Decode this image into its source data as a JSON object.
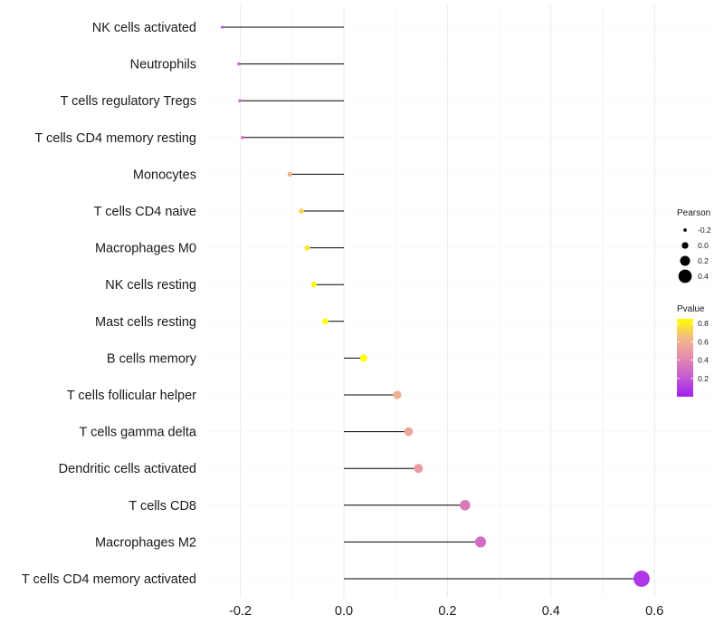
{
  "chart_data": {
    "type": "lollipop",
    "title": "",
    "xlabel": "",
    "ylabel": "",
    "xlim": [
      -0.25,
      0.65
    ],
    "xticks": [
      -0.2,
      0.0,
      0.2,
      0.4,
      0.6
    ],
    "xtick_labels": [
      "-0.2",
      "0.0",
      "0.2",
      "0.4",
      "0.6"
    ],
    "grid": true,
    "categories": [
      "NK cells activated",
      "Neutrophils",
      "T cells regulatory  Tregs",
      "T cells CD4 memory resting",
      "Monocytes",
      "T cells CD4 naive",
      "Macrophages M0",
      "NK cells resting",
      "Mast cells resting",
      "B cells memory",
      "T cells follicular helper",
      "T cells gamma delta",
      "Dendritic cells activated",
      "T cells CD8",
      "Macrophages M2",
      "T cells CD4 memory activated"
    ],
    "pearson": [
      -0.235,
      -0.203,
      -0.201,
      -0.196,
      -0.104,
      -0.082,
      -0.071,
      -0.058,
      -0.036,
      0.038,
      0.103,
      0.125,
      0.144,
      0.234,
      0.264,
      0.575
    ],
    "pvalue": [
      0.12,
      0.28,
      0.28,
      0.3,
      0.62,
      0.72,
      0.78,
      0.83,
      0.9,
      0.9,
      0.6,
      0.55,
      0.5,
      0.35,
      0.3,
      0.08
    ],
    "size_legend": {
      "title": "Pearson",
      "values": [
        -0.2,
        0.0,
        0.2,
        0.4
      ],
      "labels": [
        "-0.2",
        "0.0",
        "0.2",
        "0.4"
      ]
    },
    "color_legend": {
      "title": "Pvalue",
      "range": [
        0.0,
        0.85
      ],
      "ticks": [
        0.2,
        0.4,
        0.6,
        0.8
      ],
      "labels": [
        "0.2",
        "0.4",
        "0.6",
        "0.8"
      ],
      "low_color": "#a020f0",
      "high_color": "#ffff00"
    },
    "legend_position": "right"
  }
}
